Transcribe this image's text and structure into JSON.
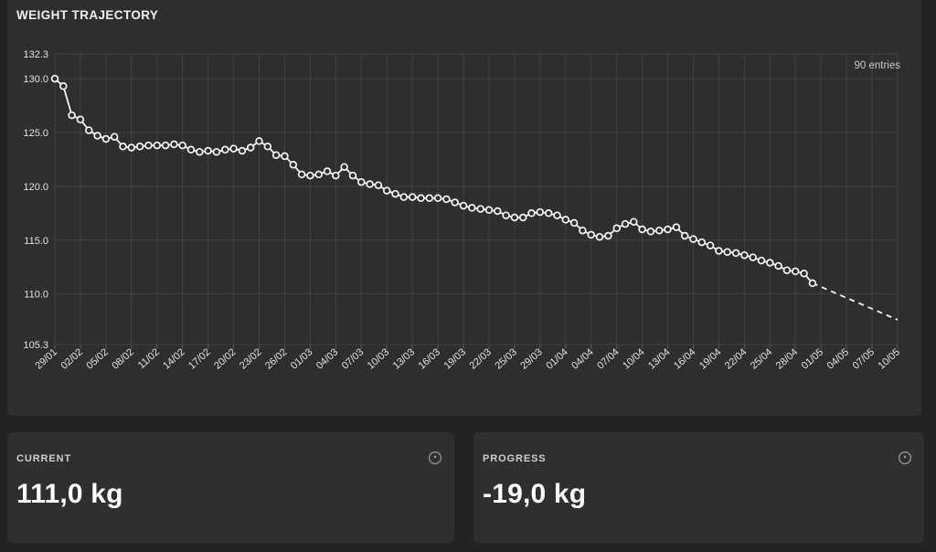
{
  "panel": {
    "title": "WEIGHT TRAJECTORY"
  },
  "entries_badge": "90 entries",
  "cards": [
    {
      "label": "CURRENT",
      "value": "111,0 kg",
      "icon": "info-circle-icon"
    },
    {
      "label": "PROGRESS",
      "value": "-19,0 kg",
      "icon": "info-circle-icon"
    }
  ],
  "colors": {
    "background": "#232323",
    "panel": "#2d2e2e",
    "card": "#2e2f2f",
    "grid": "#424242",
    "axis_tick": "#5c5c5c",
    "line": "#f5f5f5",
    "text_primary": "#ffffff",
    "text_muted": "#cfcfcf"
  },
  "chart_data": {
    "type": "line",
    "title": "WEIGHT TRAJECTORY",
    "unit": "kg",
    "entries_label": "90 entries",
    "grid": true,
    "marker": "open-circle",
    "x_tick_labels": [
      "29/01",
      "02/02",
      "05/02",
      "08/02",
      "11/02",
      "14/02",
      "17/02",
      "20/02",
      "23/02",
      "26/02",
      "01/03",
      "04/03",
      "07/03",
      "10/03",
      "13/03",
      "16/03",
      "19/03",
      "22/03",
      "25/03",
      "29/03",
      "01/04",
      "04/04",
      "07/04",
      "10/04",
      "13/04",
      "16/04",
      "19/04",
      "22/04",
      "25/04",
      "28/04",
      "01/05",
      "04/05",
      "07/05",
      "10/05"
    ],
    "points_per_tick": 3,
    "y_ticks": [
      132.3,
      130.0,
      125.0,
      120.0,
      115.0,
      110.0,
      105.3
    ],
    "y_tick_labels": [
      "132.3",
      "130.0",
      "125.0",
      "120.0",
      "115.0",
      "110.0",
      "105.3"
    ],
    "ylim": [
      105.3,
      132.3
    ],
    "values": [
      130.0,
      129.3,
      126.6,
      126.2,
      125.2,
      124.7,
      124.4,
      124.6,
      123.7,
      123.6,
      123.7,
      123.8,
      123.8,
      123.8,
      123.9,
      123.8,
      123.4,
      123.2,
      123.3,
      123.2,
      123.4,
      123.5,
      123.3,
      123.6,
      124.2,
      123.7,
      122.9,
      122.8,
      122.0,
      121.1,
      121.0,
      121.1,
      121.4,
      121.0,
      121.8,
      121.0,
      120.4,
      120.2,
      120.1,
      119.6,
      119.3,
      119.0,
      119.0,
      118.9,
      118.9,
      118.9,
      118.8,
      118.5,
      118.2,
      118.0,
      117.9,
      117.8,
      117.7,
      117.3,
      117.1,
      117.1,
      117.5,
      117.6,
      117.5,
      117.3,
      116.9,
      116.6,
      115.9,
      115.5,
      115.3,
      115.4,
      116.1,
      116.5,
      116.7,
      116.0,
      115.8,
      115.9,
      116.0,
      116.2,
      115.4,
      115.1,
      114.8,
      114.5,
      114.0,
      113.9,
      113.8,
      113.6,
      113.4,
      113.1,
      112.9,
      112.6,
      112.2,
      112.1,
      111.9,
      111.0
    ],
    "forecast": {
      "style": "dashed",
      "to_index": 99,
      "to_value": 107.6
    }
  }
}
